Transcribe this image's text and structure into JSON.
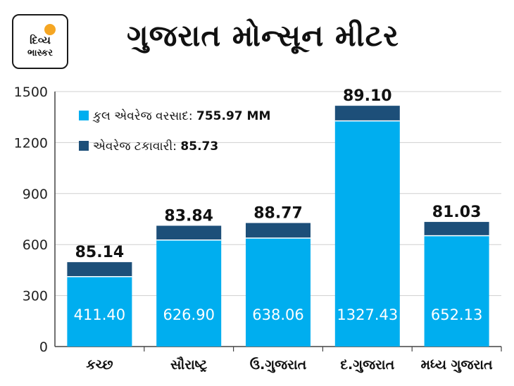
{
  "logo": {
    "line1": "દિવ્ય",
    "line2": "ભાસ્કર"
  },
  "title": "ગુજરાત મોન્સૂન મીટર",
  "colors": {
    "rain": "#00aeef",
    "pct": "#1d4f79",
    "axis": "#444444",
    "grid": "#cfcfcf"
  },
  "legend": {
    "rain_label": "કુલ એવરેજ વરસાદ:",
    "rain_value": "755.97 MM",
    "pct_label": "એવરેજ ટકાવારી:",
    "pct_value": "85.73"
  },
  "chart_data": {
    "type": "bar",
    "stacked": true,
    "categories": [
      "કચ્છ",
      "સૌરાષ્ટ્ર",
      "ઉ.ગુજરાત",
      "દ.ગુજરાત",
      "મધ્ય ગુજરાત"
    ],
    "series": [
      {
        "name": "કુલ એવરેજ વરસાદ",
        "values": [
          411.4,
          626.9,
          638.06,
          1327.43,
          652.13
        ]
      },
      {
        "name": "એવરેજ ટકાવારી",
        "values": [
          85.14,
          83.84,
          88.77,
          89.1,
          81.03
        ]
      }
    ],
    "ylim": [
      0,
      1500
    ],
    "yticks": [
      0,
      300,
      600,
      900,
      1200,
      1500
    ],
    "xlabel": "",
    "ylabel": ""
  }
}
